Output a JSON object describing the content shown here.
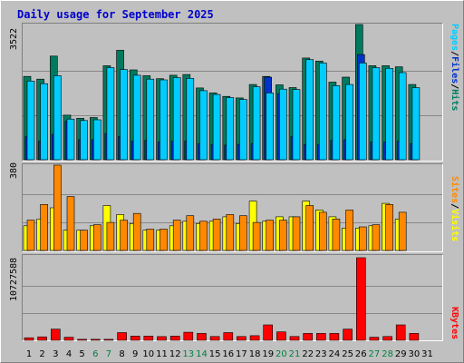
{
  "title": "Daily usage for September 2025",
  "colors": {
    "hits": "#007a5e",
    "files": "#0033cc",
    "pages": "#00ccff",
    "visits": "#ffff00",
    "sites": "#ff8800",
    "kbytes": "#ff0000",
    "weekend_label": "#008040"
  },
  "legend_top": [
    {
      "label": "Pages",
      "color": "#00ccff"
    },
    {
      "label": "/",
      "color": "#000000"
    },
    {
      "label": "Files",
      "color": "#0033cc"
    },
    {
      "label": "/",
      "color": "#000000"
    },
    {
      "label": "Hits",
      "color": "#007a5e"
    }
  ],
  "legend_mid": [
    {
      "label": "Sites",
      "color": "#ff8800"
    },
    {
      "label": "/",
      "color": "#000000"
    },
    {
      "label": "Visits",
      "color": "#ffff00"
    }
  ],
  "legend_bot": [
    {
      "label": "KBytes",
      "color": "#ff0000"
    }
  ],
  "chart_data": {
    "type": "bar",
    "categories": [
      "1",
      "2",
      "3",
      "4",
      "5",
      "6",
      "7",
      "8",
      "9",
      "10",
      "11",
      "12",
      "13",
      "14",
      "15",
      "16",
      "17",
      "18",
      "19",
      "20",
      "21",
      "22",
      "23",
      "24",
      "25",
      "26",
      "27",
      "28",
      "29",
      "30",
      "31"
    ],
    "weekend_days": [
      "6",
      "7",
      "13",
      "14",
      "20",
      "21",
      "27",
      "28"
    ],
    "top": {
      "ymax_label": "3522",
      "ymax": 3522,
      "series": [
        {
          "name": "Hits",
          "values": [
            2170,
            2100,
            2700,
            1160,
            1080,
            1100,
            2450,
            2850,
            2340,
            2190,
            2110,
            2200,
            2220,
            1870,
            1740,
            1650,
            1610,
            1960,
            2170,
            1950,
            1880,
            2650,
            2570,
            2020,
            2150,
            3522,
            2450,
            2450,
            2420,
            1960,
            0
          ]
        },
        {
          "name": "Files",
          "values": [
            600,
            480,
            660,
            1000,
            520,
            520,
            680,
            600,
            480,
            500,
            460,
            480,
            480,
            420,
            400,
            380,
            400,
            420,
            2150,
            1720,
            600,
            400,
            400,
            500,
            520,
            2740,
            460,
            460,
            480,
            420,
            0
          ]
        },
        {
          "name": "Pages",
          "values": [
            2050,
            1980,
            2190,
            1060,
            1020,
            1040,
            2400,
            2350,
            2200,
            2100,
            2080,
            2140,
            2120,
            1800,
            1700,
            1620,
            1570,
            1900,
            1740,
            1840,
            1830,
            2610,
            2520,
            1930,
            1960,
            2520,
            2400,
            2380,
            2270,
            1880,
            0
          ]
        }
      ]
    },
    "middle": {
      "ymax_label": "380",
      "ymax": 380,
      "series": [
        {
          "name": "Visits",
          "values": [
            110,
            140,
            190,
            90,
            90,
            110,
            200,
            160,
            120,
            90,
            90,
            110,
            130,
            120,
            130,
            150,
            120,
            220,
            130,
            150,
            150,
            220,
            180,
            150,
            100,
            100,
            110,
            210,
            140,
            0,
            0
          ]
        },
        {
          "name": "Sites",
          "values": [
            135,
            205,
            380,
            240,
            90,
            115,
            125,
            135,
            165,
            95,
            95,
            135,
            155,
            130,
            140,
            160,
            155,
            125,
            135,
            135,
            150,
            200,
            170,
            140,
            180,
            105,
            115,
            205,
            170,
            0,
            0
          ]
        }
      ]
    },
    "bottom": {
      "ymax_label": "10727588",
      "ymax": 10727588,
      "series": [
        {
          "name": "KBytes",
          "values": [
            330000,
            450000,
            1450000,
            400000,
            130000,
            130000,
            130000,
            1000000,
            550000,
            550000,
            480000,
            550000,
            1050000,
            900000,
            500000,
            1000000,
            500000,
            600000,
            2000000,
            1100000,
            500000,
            900000,
            900000,
            900000,
            1450000,
            10727588,
            400000,
            500000,
            2000000,
            900000,
            0
          ]
        }
      ]
    }
  }
}
